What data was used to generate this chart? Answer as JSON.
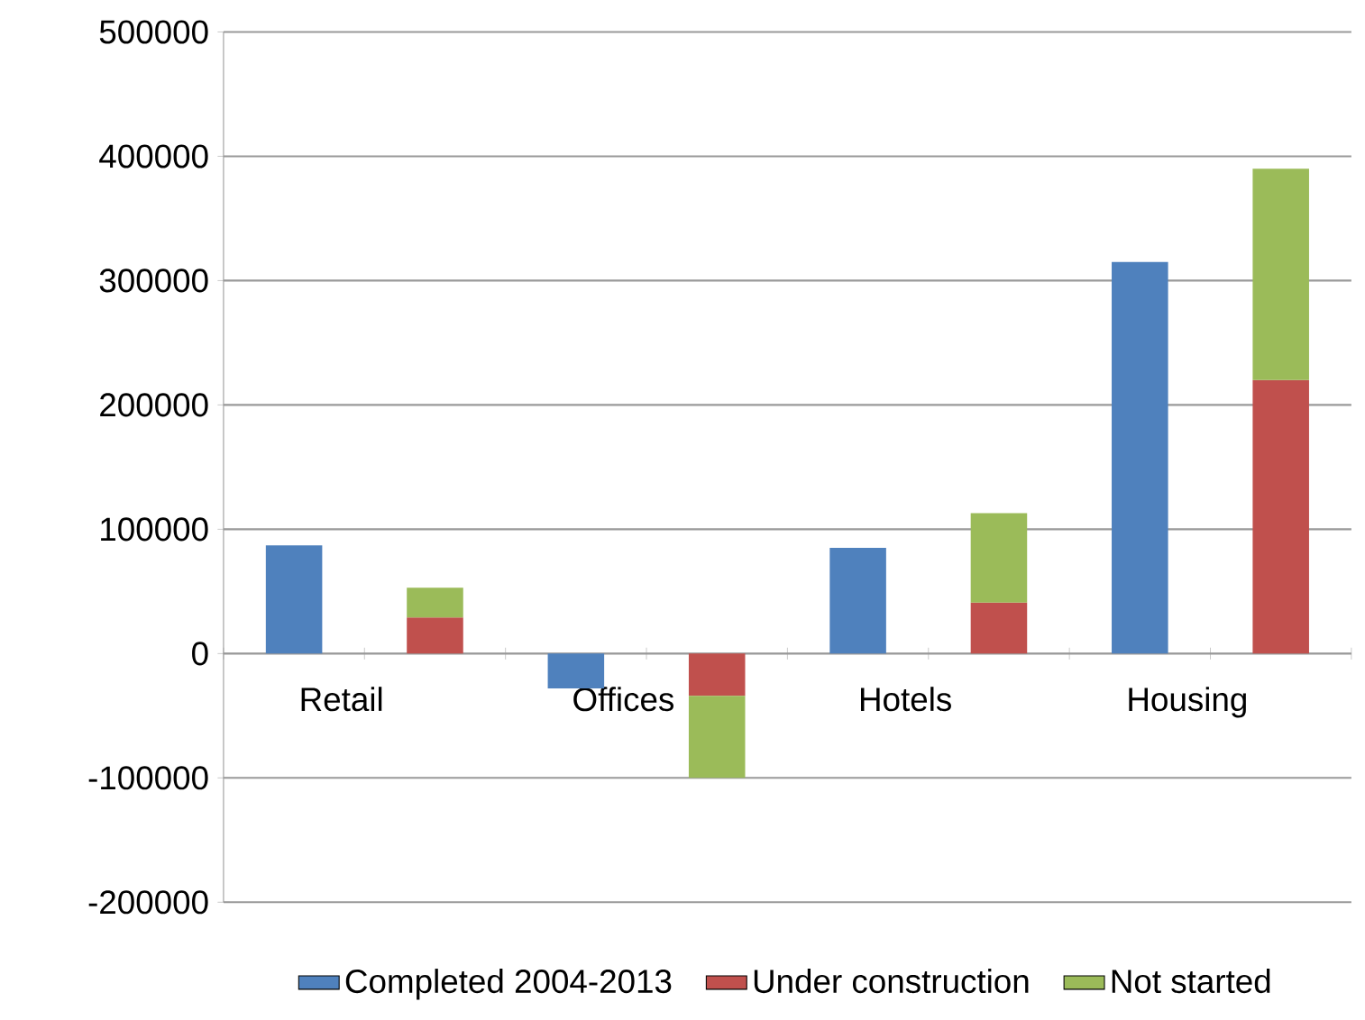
{
  "chart_data": {
    "type": "bar",
    "stacked": true,
    "categories": [
      "Retail",
      null,
      "Offices",
      null,
      "Hotels",
      null,
      "Housing",
      null
    ],
    "series": [
      {
        "name": "Completed 2004-2013",
        "color": "#4f81bd",
        "values": [
          87000,
          null,
          -28000,
          null,
          85000,
          null,
          315000,
          null
        ]
      },
      {
        "name": "Under construction",
        "color": "#c0504d",
        "values": [
          null,
          29000,
          null,
          -34000,
          null,
          41000,
          null,
          220000
        ]
      },
      {
        "name": "Not started",
        "color": "#9bbb59",
        "values": [
          null,
          24000,
          null,
          -66000,
          null,
          72000,
          null,
          170000
        ]
      }
    ],
    "ylim": [
      -200000,
      500000
    ],
    "yticks": [
      -200000,
      -100000,
      0,
      100000,
      200000,
      300000,
      400000,
      500000
    ],
    "grid": "y",
    "legend": "bottom"
  }
}
